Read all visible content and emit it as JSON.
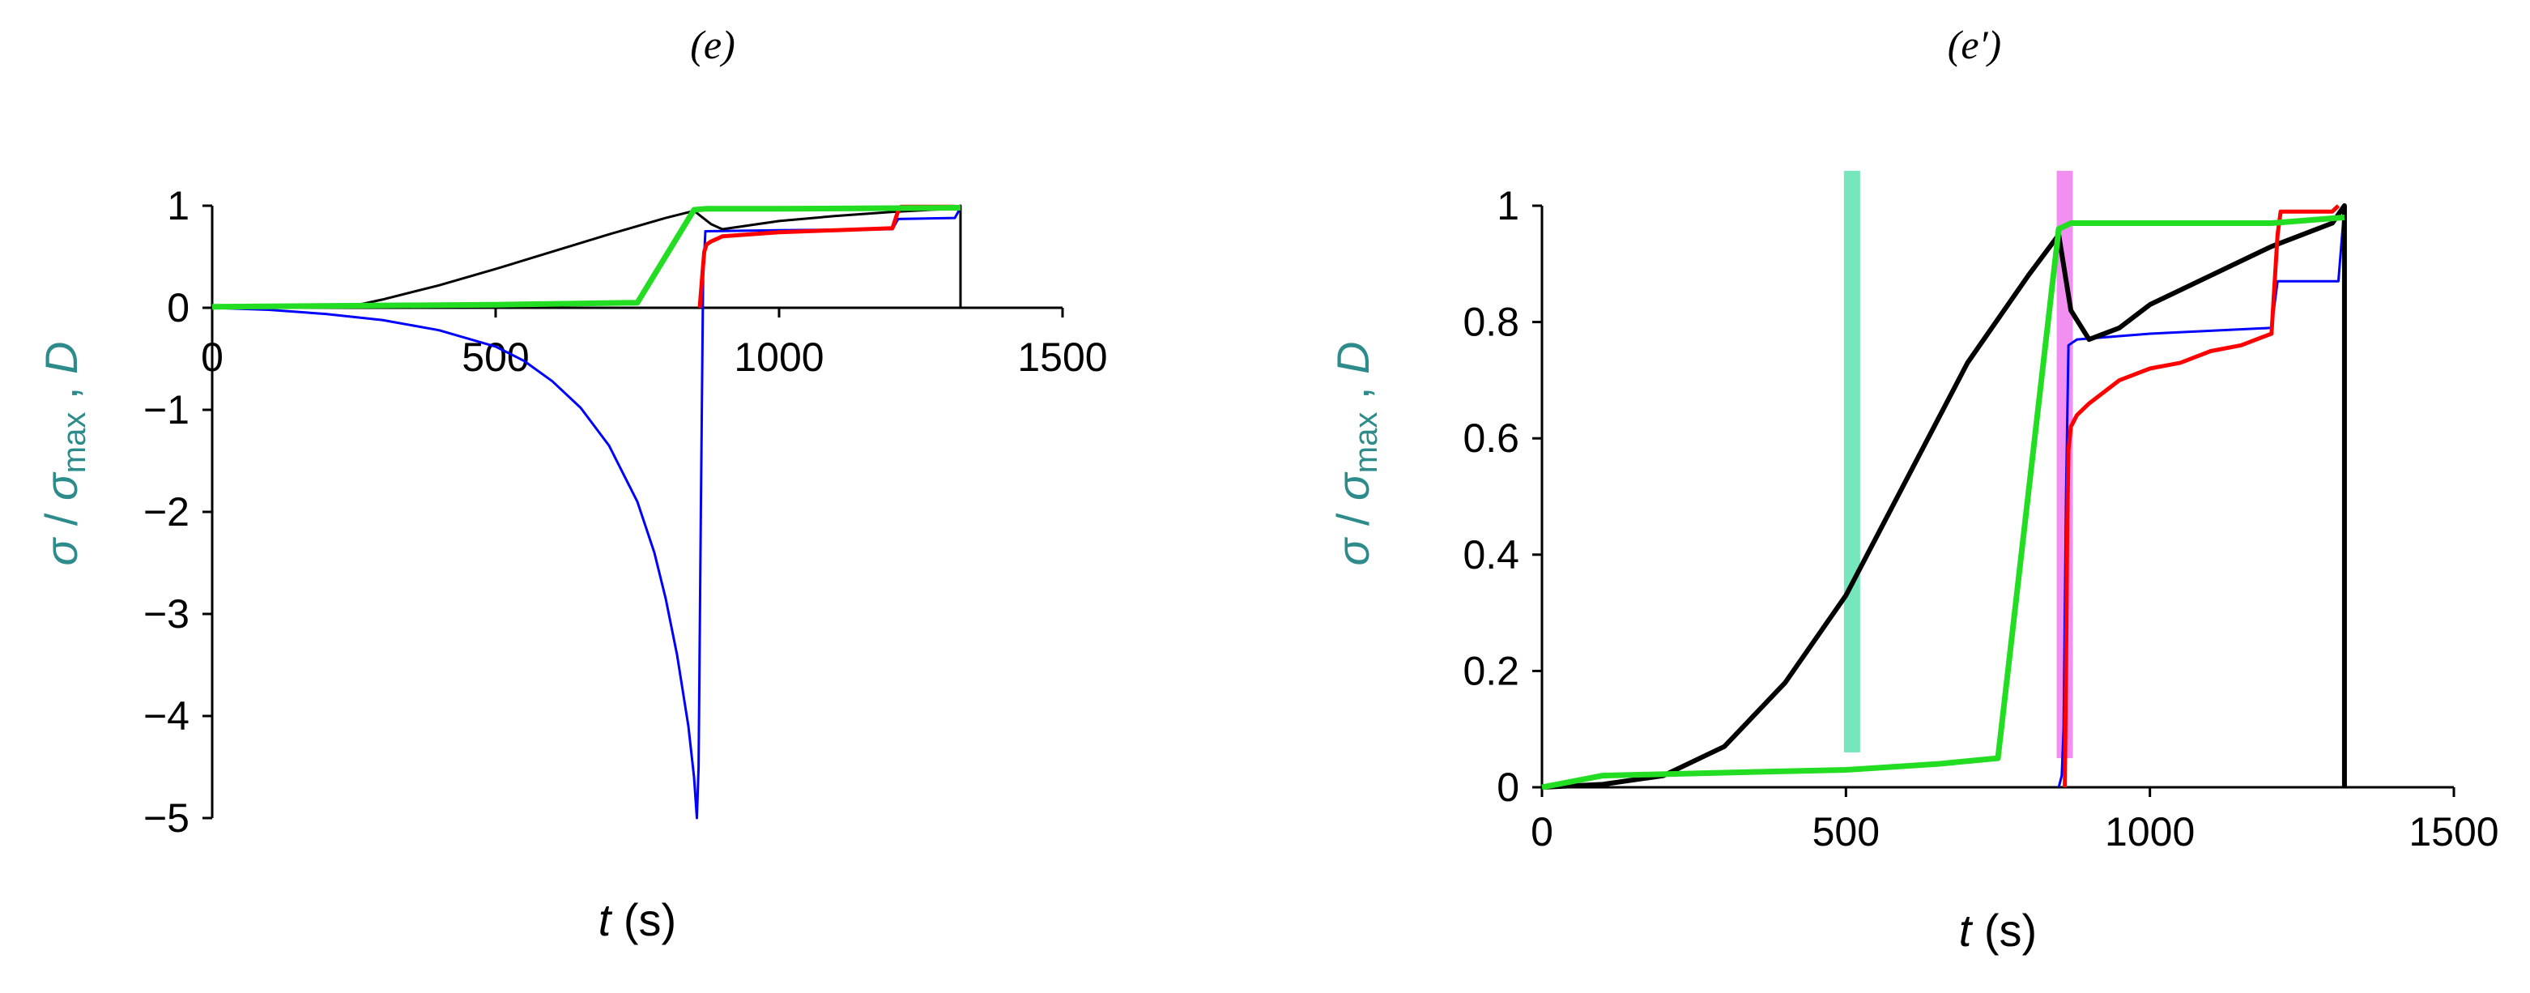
{
  "chart_data": [
    {
      "type": "line",
      "panel_label": "(e)",
      "xlabel_symbol": "t",
      "xlabel_unit": " (s)",
      "ylabel_sigma": "σ",
      "ylabel_slash": " / ",
      "ylabel_sigma2": "σ",
      "ylabel_sub": "max",
      "ylabel_sep": " ,  ",
      "ylabel_D": "D",
      "xlim": [
        0,
        1500
      ],
      "ylim": [
        -5,
        1
      ],
      "xticks": [
        0,
        500,
        1000,
        1500
      ],
      "xtick_labels": [
        "0",
        "500",
        "1000",
        "1500"
      ],
      "yticks": [
        1,
        0,
        -1,
        -2,
        -3,
        -4,
        -5
      ],
      "ytick_labels": [
        "1",
        "0",
        "−1",
        "−2",
        "−3",
        "−4",
        "−5"
      ],
      "grid": false,
      "series": [
        {
          "color": "#0000ff",
          "width": 3,
          "x": [
            0,
            100,
            200,
            300,
            400,
            500,
            550,
            600,
            650,
            700,
            750,
            780,
            800,
            820,
            840,
            850,
            855,
            858,
            862,
            866,
            870,
            1000,
            1200,
            1210,
            1310,
            1320
          ],
          "y": [
            0,
            -0.02,
            -0.06,
            -0.12,
            -0.22,
            -0.38,
            -0.52,
            -0.72,
            -0.98,
            -1.35,
            -1.9,
            -2.4,
            -2.85,
            -3.4,
            -4.1,
            -4.6,
            -5.0,
            -4.5,
            -2.0,
            0.3,
            0.75,
            0.76,
            0.77,
            0.87,
            0.88,
            0.98
          ]
        },
        {
          "color": "#000000",
          "width": 3,
          "x": [
            0,
            250,
            300,
            400,
            500,
            600,
            700,
            800,
            850,
            880,
            900,
            1000,
            1100,
            1200,
            1300,
            1320,
            1320
          ],
          "y": [
            0,
            0.02,
            0.08,
            0.22,
            0.38,
            0.55,
            0.72,
            0.88,
            0.95,
            0.82,
            0.77,
            0.85,
            0.9,
            0.94,
            0.97,
            1.0,
            0.0
          ]
        },
        {
          "color": "#ff0000",
          "width": 5,
          "x": [
            860,
            865,
            868,
            872,
            880,
            900,
            1000,
            1100,
            1200,
            1210,
            1215,
            1310
          ],
          "y": [
            0,
            0.35,
            0.55,
            0.62,
            0.65,
            0.7,
            0.74,
            0.76,
            0.78,
            0.95,
            0.99,
            0.99
          ]
        },
        {
          "color": "#22dd22",
          "width": 7,
          "x": [
            0,
            500,
            750,
            850,
            870,
            1000,
            1320
          ],
          "y": [
            0.01,
            0.03,
            0.05,
            0.96,
            0.97,
            0.97,
            0.98
          ]
        }
      ],
      "bands": []
    },
    {
      "type": "line",
      "panel_label": "(e′)",
      "xlabel_symbol": "t",
      "xlabel_unit": " (s)",
      "ylabel_sigma": "σ",
      "ylabel_slash": " / ",
      "ylabel_sigma2": "σ",
      "ylabel_sub": "max",
      "ylabel_sep": " ,  ",
      "ylabel_D": "D",
      "xlim": [
        0,
        1500
      ],
      "ylim": [
        0,
        1
      ],
      "xticks": [
        0,
        500,
        1000,
        1500
      ],
      "xtick_labels": [
        "0",
        "500",
        "1000",
        "1500"
      ],
      "yticks": [
        1,
        0.8,
        0.6,
        0.4,
        0.2,
        0
      ],
      "ytick_labels": [
        "1",
        "0.8",
        "0.6",
        "0.4",
        "0.2",
        "0"
      ],
      "grid": false,
      "bands": [
        {
          "color": "#5ee3b0",
          "x": 510,
          "y0": 0.06,
          "y1": 1.06
        },
        {
          "color": "#f07cf0",
          "x": 860,
          "y0": 0.05,
          "y1": 1.06
        }
      ],
      "series": [
        {
          "color": "#0000ff",
          "width": 3,
          "x": [
            850,
            855,
            858,
            862,
            866,
            880,
            1000,
            1200,
            1210,
            1310,
            1320
          ],
          "y": [
            0,
            0.02,
            0.1,
            0.5,
            0.76,
            0.77,
            0.78,
            0.79,
            0.87,
            0.87,
            1.0
          ]
        },
        {
          "color": "#000000",
          "width": 6,
          "x": [
            0,
            100,
            200,
            300,
            400,
            500,
            600,
            700,
            800,
            850,
            870,
            900,
            950,
            1000,
            1100,
            1200,
            1300,
            1320,
            1320
          ],
          "y": [
            0,
            0.005,
            0.02,
            0.07,
            0.18,
            0.33,
            0.53,
            0.73,
            0.88,
            0.95,
            0.82,
            0.77,
            0.79,
            0.83,
            0.88,
            0.93,
            0.97,
            1.0,
            0.0
          ]
        },
        {
          "color": "#ff0000",
          "width": 5,
          "x": [
            860,
            862,
            864,
            866,
            870,
            880,
            900,
            950,
            1000,
            1050,
            1100,
            1150,
            1200,
            1210,
            1215,
            1300,
            1310
          ],
          "y": [
            0,
            0.2,
            0.45,
            0.58,
            0.62,
            0.64,
            0.66,
            0.7,
            0.72,
            0.73,
            0.75,
            0.76,
            0.78,
            0.95,
            0.99,
            0.99,
            1.0
          ]
        },
        {
          "color": "#22dd22",
          "width": 7,
          "x": [
            0,
            100,
            300,
            500,
            650,
            750,
            850,
            870,
            1000,
            1200,
            1320
          ],
          "y": [
            0.0,
            0.02,
            0.025,
            0.03,
            0.04,
            0.05,
            0.96,
            0.97,
            0.97,
            0.97,
            0.98
          ]
        }
      ]
    }
  ]
}
